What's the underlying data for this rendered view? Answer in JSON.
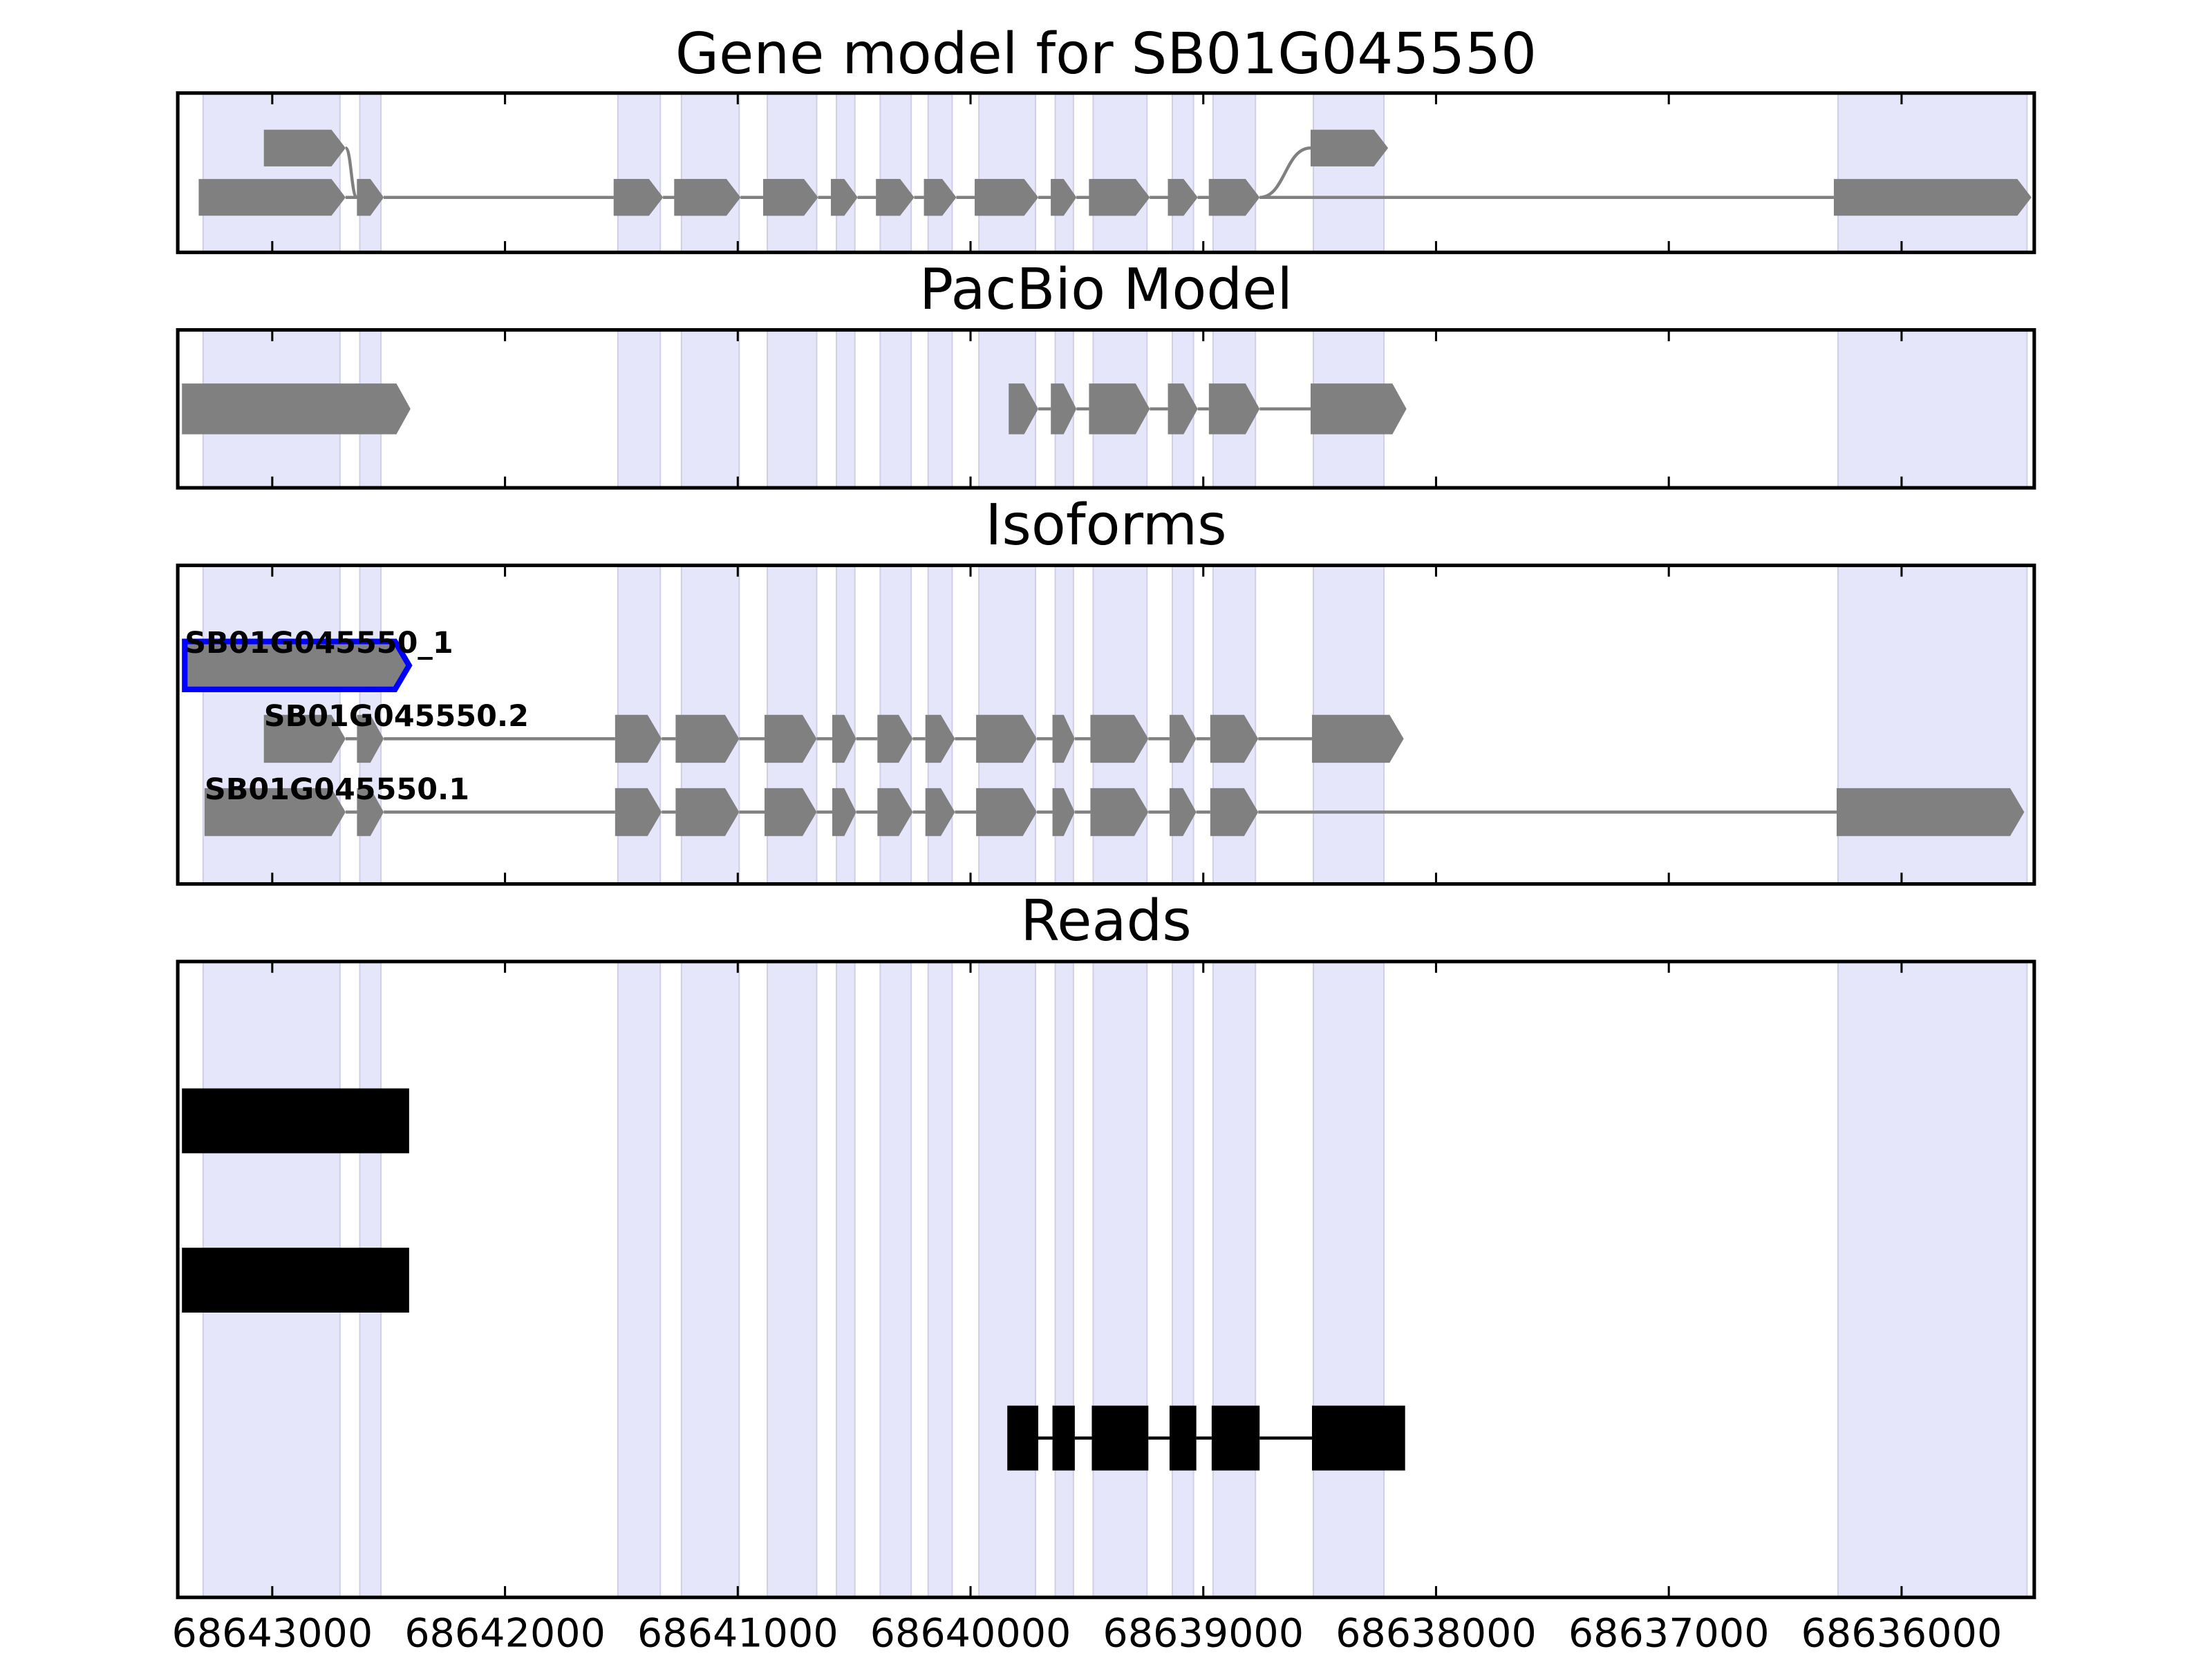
{
  "chart_data": {
    "type": "genome-tracks",
    "xlim": [
      68643406,
      68635430
    ],
    "xticks": [
      68643000,
      68642000,
      68641000,
      68640000,
      68639000,
      68638000,
      68637000,
      68636000
    ],
    "highlight_color": "#e6e6fa",
    "highlights": [
      [
        68643297,
        68642709
      ],
      [
        68642624,
        68642533
      ],
      [
        68641515,
        68641333
      ],
      [
        68641242,
        68640994
      ],
      [
        68640873,
        68640661
      ],
      [
        68640576,
        68640497
      ],
      [
        68640388,
        68640255
      ],
      [
        68640182,
        68640079
      ],
      [
        68639964,
        68639721
      ],
      [
        68639636,
        68639558
      ],
      [
        68639473,
        68639242
      ],
      [
        68639133,
        68639042
      ],
      [
        68638958,
        68638776
      ],
      [
        68638527,
        68638224
      ],
      [
        68636273,
        68635461
      ]
    ],
    "tracks": [
      {
        "title": "Gene model for SB01G045550",
        "style": "arrow",
        "color": "#808080",
        "transcripts": [
          {
            "lanes": [
              0,
              0,
              0,
              0,
              0,
              0,
              0,
              0,
              0,
              0,
              0,
              0,
              0,
              0
            ],
            "exons": [
              [
                68643316,
                68642685
              ],
              [
                68642636,
                68642521
              ],
              [
                68641533,
                68641321
              ],
              [
                68641273,
                68640988
              ],
              [
                68640891,
                68640655
              ],
              [
                68640600,
                68640485
              ],
              [
                68640406,
                68640242
              ],
              [
                68640200,
                68640061
              ],
              [
                68639982,
                68639709
              ],
              [
                68639655,
                68639545
              ],
              [
                68639491,
                68639230
              ],
              [
                68639152,
                68639024
              ],
              [
                68638976,
                68638758
              ],
              [
                68636291,
                68635442
              ]
            ]
          },
          {
            "lanes": [
              1,
              0,
              0,
              0,
              0,
              0,
              0,
              0,
              0,
              0,
              0,
              0,
              0,
              1
            ],
            "exons": [
              [
                68643036,
                68642685
              ],
              [
                68642636,
                68642521
              ],
              [
                68641533,
                68641321
              ],
              [
                68641273,
                68640988
              ],
              [
                68640891,
                68640655
              ],
              [
                68640600,
                68640485
              ],
              [
                68640406,
                68640242
              ],
              [
                68640200,
                68640061
              ],
              [
                68639982,
                68639709
              ],
              [
                68639655,
                68639545
              ],
              [
                68639491,
                68639230
              ],
              [
                68639152,
                68639024
              ],
              [
                68638976,
                68638758
              ],
              [
                68638539,
                68638206
              ]
            ]
          }
        ]
      },
      {
        "title": "PacBio Model",
        "style": "arrow",
        "color": "#808080",
        "transcripts": [
          {
            "exons": [
              [
                68643388,
                68642406
              ]
            ]
          },
          {
            "exons": [
              [
                68639836,
                68639709
              ],
              [
                68639655,
                68639545
              ],
              [
                68639491,
                68639230
              ],
              [
                68639152,
                68639024
              ],
              [
                68638976,
                68638758
              ],
              [
                68638539,
                68638127
              ]
            ]
          }
        ]
      },
      {
        "title": "Isoforms",
        "style": "arrow",
        "color": "#808080",
        "transcripts": [
          {
            "name": "SB01G045550_1",
            "edgecolor": "#0000ff",
            "exons": [
              [
                68643376,
                68642412
              ]
            ]
          },
          {
            "name": "SB01G045550.2",
            "exons": [
              [
                68643036,
                68642685
              ],
              [
                68642636,
                68642521
              ],
              [
                68641527,
                68641327
              ],
              [
                68641267,
                68640994
              ],
              [
                68640885,
                68640661
              ],
              [
                68640594,
                68640491
              ],
              [
                68640400,
                68640248
              ],
              [
                68640194,
                68640067
              ],
              [
                68639976,
                68639715
              ],
              [
                68639648,
                68639552
              ],
              [
                68639485,
                68639236
              ],
              [
                68639145,
                68639030
              ],
              [
                68638970,
                68638764
              ],
              [
                68638533,
                68638139
              ]
            ]
          },
          {
            "name": "SB01G045550.1",
            "exons": [
              [
                68643291,
                68642685
              ],
              [
                68642636,
                68642521
              ],
              [
                68641527,
                68641327
              ],
              [
                68641267,
                68640994
              ],
              [
                68640885,
                68640661
              ],
              [
                68640594,
                68640491
              ],
              [
                68640400,
                68640248
              ],
              [
                68640194,
                68640067
              ],
              [
                68639976,
                68639715
              ],
              [
                68639648,
                68639552
              ],
              [
                68639485,
                68639236
              ],
              [
                68639145,
                68639030
              ],
              [
                68638970,
                68638764
              ],
              [
                68636279,
                68635473
              ]
            ]
          }
        ]
      },
      {
        "title": "Reads",
        "style": "block",
        "color": "#000000",
        "transcripts": [
          {
            "exons": [
              [
                68643388,
                68642412
              ]
            ]
          },
          {
            "exons": [
              [
                68643388,
                68642412
              ]
            ]
          },
          {
            "exons": [
              [
                68639842,
                68639709
              ],
              [
                68639648,
                68639552
              ],
              [
                68639479,
                68639236
              ],
              [
                68639145,
                68639030
              ],
              [
                68638964,
                68638758
              ],
              [
                68638533,
                68638133
              ]
            ]
          }
        ]
      }
    ]
  }
}
